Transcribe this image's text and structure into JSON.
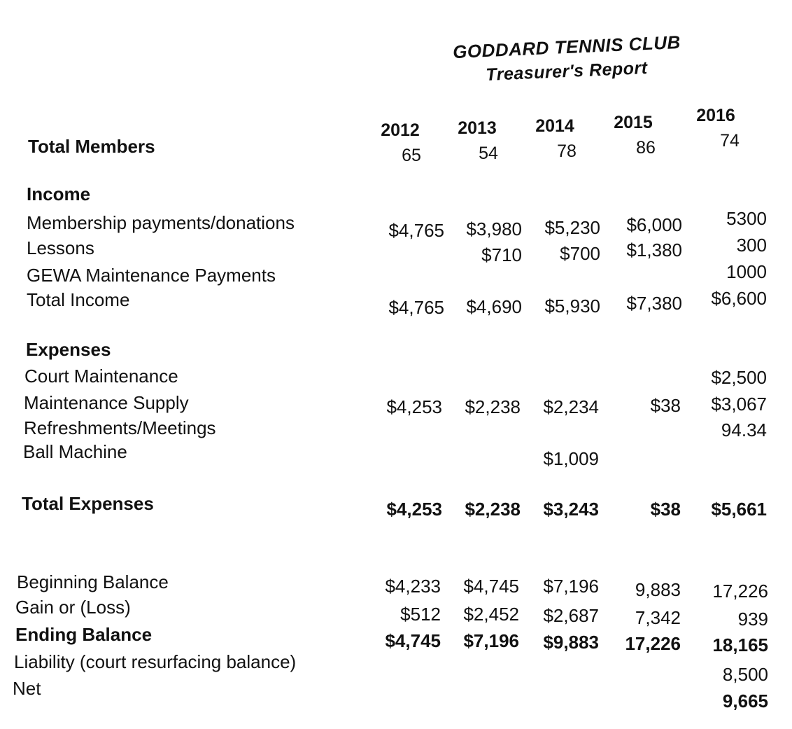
{
  "header": {
    "org": "GODDARD TENNIS CLUB",
    "subtitle": "Treasurer's Report"
  },
  "years": [
    "2012",
    "2013",
    "2014",
    "2015",
    "2016"
  ],
  "members": {
    "label": "Total Members",
    "values": [
      "65",
      "54",
      "78",
      "86",
      "74"
    ]
  },
  "income": {
    "heading": "Income",
    "rows": [
      {
        "label": "Membership payments/donations",
        "values": [
          "$4,765",
          "$3,980",
          "$5,230",
          "$6,000",
          "5300"
        ]
      },
      {
        "label": "Lessons",
        "values": [
          "",
          "$710",
          "$700",
          "$1,380",
          "300"
        ]
      },
      {
        "label": "GEWA Maintenance Payments",
        "values": [
          "",
          "",
          "",
          "",
          "1000"
        ]
      },
      {
        "label": "Total Income",
        "values": [
          "$4,765",
          "$4,690",
          "$5,930",
          "$7,380",
          "$6,600"
        ]
      }
    ]
  },
  "expenses": {
    "heading": "Expenses",
    "rows": [
      {
        "label": "Court Maintenance",
        "values": [
          "",
          "",
          "",
          "",
          "$2,500"
        ]
      },
      {
        "label": "Maintenance Supply",
        "values": [
          "$4,253",
          "$2,238",
          "$2,234",
          "$38",
          "$3,067"
        ]
      },
      {
        "label": "Refreshments/Meetings",
        "values": [
          "",
          "",
          "",
          "",
          "94.34"
        ]
      },
      {
        "label": "Ball Machine",
        "values": [
          "",
          "",
          "$1,009",
          "",
          ""
        ]
      }
    ],
    "total": {
      "label": "Total Expenses",
      "values": [
        "$4,253",
        "$2,238",
        "$3,243",
        "$38",
        "$5,661"
      ]
    }
  },
  "balance": {
    "rows": [
      {
        "label": "Beginning Balance",
        "values": [
          "$4,233",
          "$4,745",
          "$7,196",
          "9,883",
          "17,226"
        ]
      },
      {
        "label": "Gain or (Loss)",
        "values": [
          "$512",
          "$2,452",
          "$2,687",
          "7,342",
          "939"
        ]
      },
      {
        "label": "Ending Balance",
        "values": [
          "$4,745",
          "$7,196",
          "$9,883",
          "17,226",
          "18,165"
        ]
      },
      {
        "label": "Liability (court resurfacing balance)",
        "values": [
          "",
          "",
          "",
          "",
          "8,500"
        ]
      },
      {
        "label": "Net",
        "values": [
          "",
          "",
          "",
          "",
          "9,665"
        ]
      }
    ]
  }
}
